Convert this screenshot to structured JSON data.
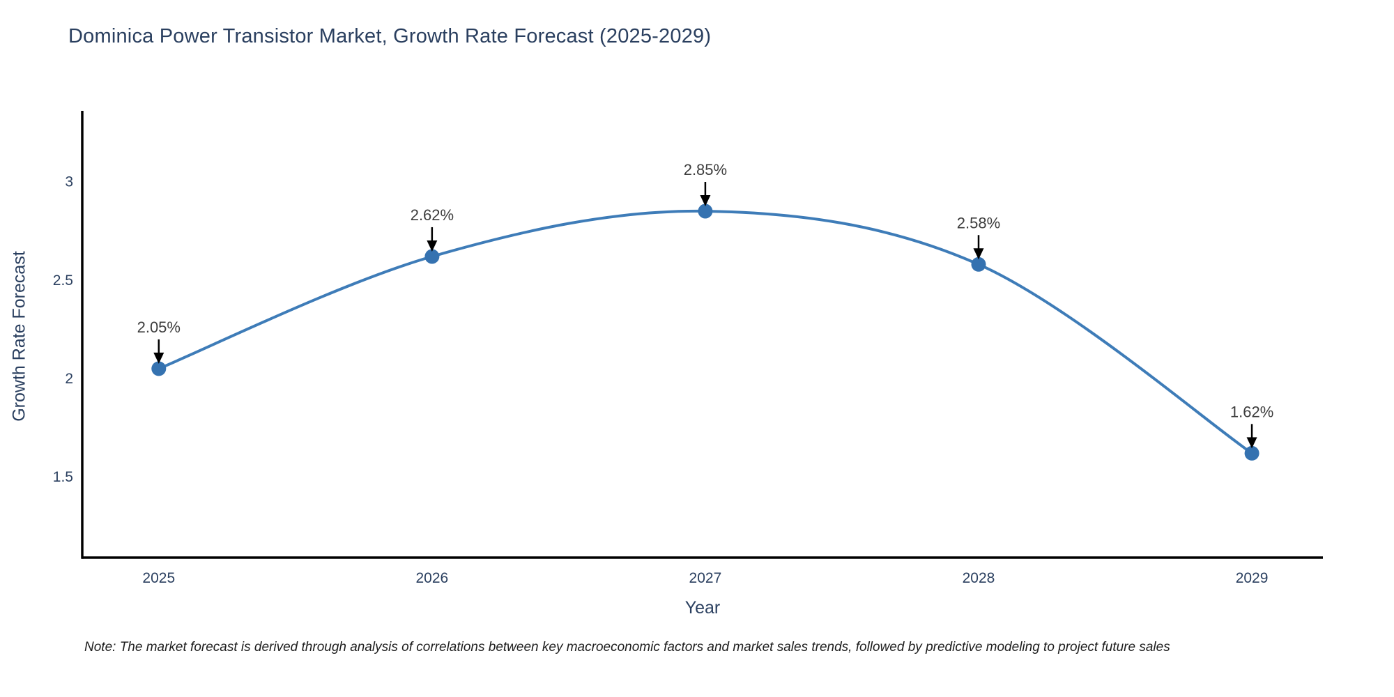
{
  "chart": {
    "title": "Dominica Power Transistor Market, Growth Rate Forecast (2025-2029)",
    "xlabel": "Year",
    "ylabel": "Growth Rate Forecast",
    "note": "Note: The market forecast is derived through analysis of correlations between key macroeconomic factors and market sales trends, followed by predictive modeling to project future sales"
  },
  "chart_data": {
    "type": "line",
    "title": "Dominica Power Transistor Market, Growth Rate Forecast (2025-2029)",
    "x": [
      2025,
      2026,
      2027,
      2028,
      2029
    ],
    "values": [
      2.05,
      2.62,
      2.85,
      2.58,
      1.62
    ],
    "point_labels": [
      "2.05%",
      "2.62%",
      "2.85%",
      "2.58%",
      "1.62%"
    ],
    "xtick_labels": [
      "2025",
      "2026",
      "2027",
      "2028",
      "2029"
    ],
    "yticks": [
      1.5,
      2,
      2.5,
      3
    ],
    "ytick_labels": [
      "1.5",
      "2",
      "2.5",
      "3"
    ],
    "xlabel": "Year",
    "ylabel": "Growth Rate Forecast",
    "xlim": [
      2024.72,
      2029.26
    ],
    "ylim": [
      1.09,
      3.36
    ],
    "grid": false,
    "legend_position": "none",
    "line_shape": "spline",
    "annotations": "black arrow pointing down to each data point with percent label above",
    "colors": {
      "line": "#3e7cb8",
      "marker": "#3572b0",
      "axis": "#000000",
      "tick_text": "#2a3f5f",
      "label_text": "#3d3d3d",
      "arrow": "#000000",
      "background": "#ffffff"
    }
  }
}
